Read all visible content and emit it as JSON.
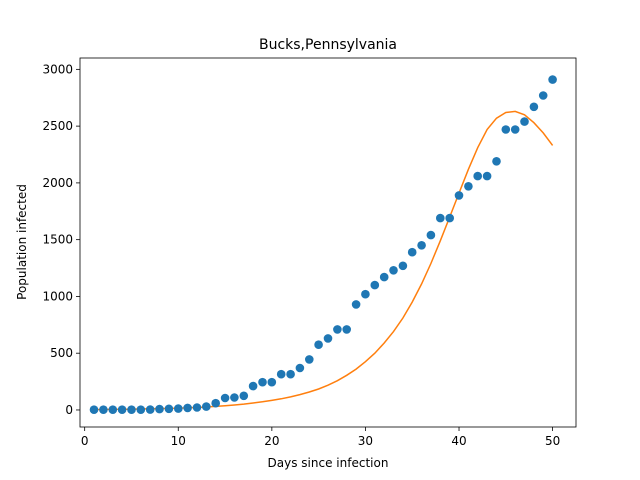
{
  "chart_data": {
    "type": "scatter",
    "title": "Bucks,Pennsylvania",
    "xlabel": "Days since infection",
    "ylabel": "Population infected",
    "xlim": [
      -0.5,
      52.5
    ],
    "ylim": [
      -150,
      3100
    ],
    "xticks": [
      0,
      10,
      20,
      30,
      40,
      50
    ],
    "yticks": [
      0,
      500,
      1000,
      1500,
      2000,
      2500,
      3000
    ],
    "grid": false,
    "series": [
      {
        "kind": "scatter",
        "color": "#1f77b4",
        "x": [
          1,
          2,
          3,
          4,
          5,
          6,
          7,
          8,
          9,
          10,
          11,
          12,
          13,
          14,
          15,
          16,
          17,
          18,
          19,
          20,
          21,
          22,
          23,
          24,
          25,
          26,
          27,
          28,
          29,
          30,
          31,
          32,
          33,
          34,
          35,
          36,
          37,
          38,
          39,
          40,
          41,
          42,
          43,
          44,
          45,
          46,
          47,
          48,
          49,
          50
        ],
        "y": [
          2,
          2,
          2,
          2,
          2,
          2,
          3,
          8,
          10,
          12,
          18,
          22,
          30,
          60,
          105,
          110,
          125,
          210,
          245,
          245,
          315,
          315,
          370,
          445,
          575,
          630,
          710,
          710,
          930,
          1020,
          1100,
          1170,
          1230,
          1270,
          1390,
          1450,
          1540,
          1690,
          1690,
          1890,
          1970,
          2060,
          2060,
          2190,
          2470,
          2470,
          2540,
          2670,
          2770,
          2910
        ]
      },
      {
        "kind": "line",
        "color": "#ff7f0e",
        "x": [
          1,
          2,
          3,
          4,
          5,
          6,
          7,
          8,
          9,
          10,
          11,
          12,
          13,
          14,
          15,
          16,
          17,
          18,
          19,
          20,
          21,
          22,
          23,
          24,
          25,
          26,
          27,
          28,
          29,
          30,
          31,
          32,
          33,
          34,
          35,
          36,
          37,
          38,
          39,
          40,
          41,
          42,
          43,
          44,
          45,
          46,
          47,
          48,
          49,
          50
        ],
        "y": [
          3,
          4,
          5,
          6,
          7,
          9,
          10,
          12,
          14,
          16,
          19,
          22,
          26,
          31,
          37,
          44,
          52,
          61,
          72,
          84,
          98,
          115,
          135,
          158,
          185,
          218,
          258,
          305,
          360,
          425,
          500,
          590,
          690,
          810,
          950,
          1110,
          1290,
          1490,
          1700,
          1910,
          2120,
          2310,
          2470,
          2570,
          2620,
          2630,
          2600,
          2530,
          2440,
          2330
        ]
      }
    ]
  }
}
